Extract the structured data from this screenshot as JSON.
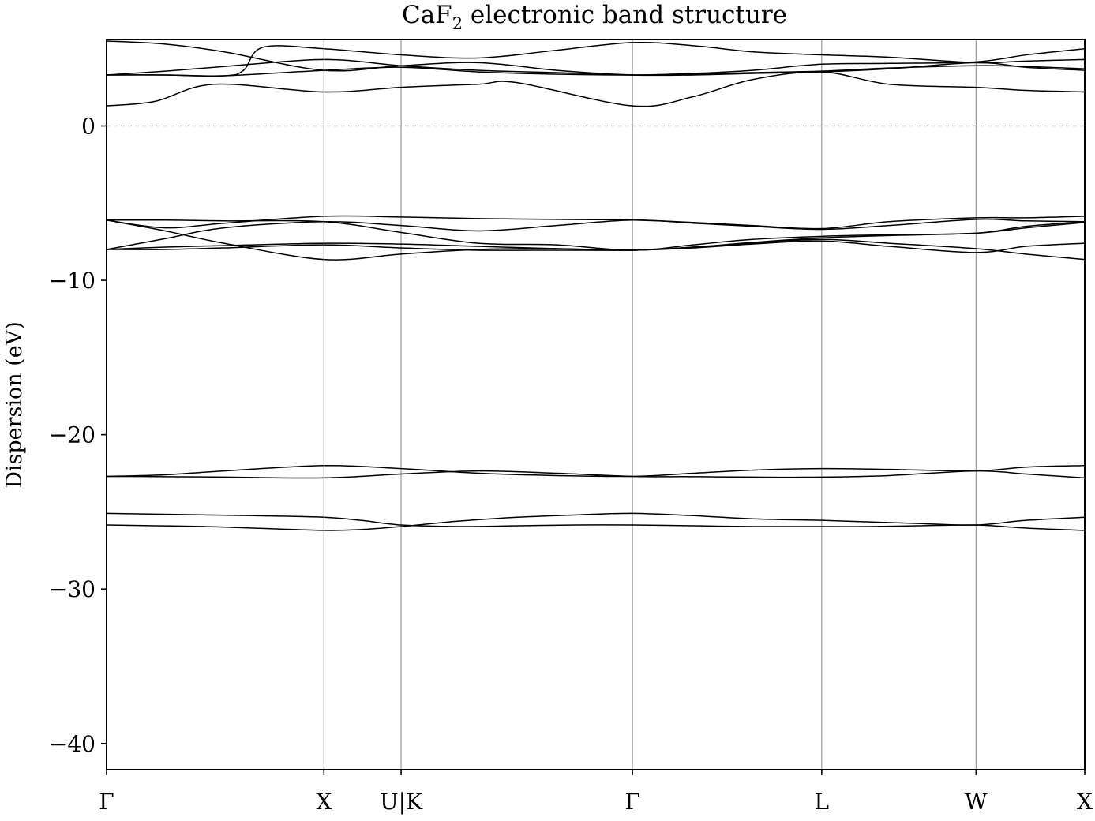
{
  "chart_data": {
    "type": "line",
    "title": "CaF",
    "title_subscript": "2",
    "title_suffix": " electronic band structure",
    "xlabel": "",
    "ylabel": "Dispersion (eV)",
    "ylim": [
      -41.7,
      5.6
    ],
    "xlim": [
      0,
      1
    ],
    "grid": false,
    "fermi_level": 0,
    "high_symmetry_points": [
      {
        "label": "Γ",
        "x": 0.0
      },
      {
        "label": "X",
        "x": 0.2222
      },
      {
        "label": "U|K",
        "x": 0.3011
      },
      {
        "label": "Γ",
        "x": 0.5376
      },
      {
        "label": "L",
        "x": 0.7311
      },
      {
        "label": "W",
        "x": 0.8889
      },
      {
        "label": "X",
        "x": 1.0
      }
    ],
    "y_ticks": [
      0,
      -10,
      -20,
      -30,
      -40
    ],
    "y_tick_labels": [
      "0",
      "−10",
      "−20",
      "−30",
      "−40"
    ],
    "series": [
      {
        "band": 1,
        "x": [
          0,
          0.05,
          0.1,
          0.15,
          0.2222,
          0.26,
          0.3011,
          0.36,
          0.42,
          0.48,
          0.5376,
          0.6,
          0.66,
          0.7311,
          0.78,
          0.83,
          0.8889,
          0.94,
          1.0
        ],
        "values": [
          -25.85,
          -25.9,
          -25.95,
          -26.05,
          -26.2,
          -26.15,
          -25.95,
          -25.6,
          -25.35,
          -25.2,
          -25.1,
          -25.25,
          -25.45,
          -25.55,
          -25.65,
          -25.75,
          -25.85,
          -25.55,
          -25.35
        ]
      },
      {
        "band": 2,
        "x": [
          0,
          0.05,
          0.1,
          0.15,
          0.2222,
          0.26,
          0.3011,
          0.36,
          0.42,
          0.48,
          0.5376,
          0.6,
          0.66,
          0.7311,
          0.78,
          0.83,
          0.8889,
          0.94,
          1.0
        ],
        "values": [
          -25.1,
          -25.15,
          -25.2,
          -25.25,
          -25.35,
          -25.55,
          -25.85,
          -25.95,
          -25.9,
          -25.85,
          -25.85,
          -25.9,
          -25.95,
          -25.95,
          -25.95,
          -25.9,
          -25.85,
          -26.05,
          -26.2
        ]
      },
      {
        "band": 3,
        "x": [
          0,
          0.06,
          0.12,
          0.2222,
          0.3011,
          0.38,
          0.46,
          0.5376,
          0.6,
          0.66,
          0.7311,
          0.8,
          0.8889,
          0.94,
          1.0
        ],
        "values": [
          -22.7,
          -22.6,
          -22.35,
          -22.0,
          -22.2,
          -22.5,
          -22.65,
          -22.7,
          -22.5,
          -22.3,
          -22.2,
          -22.25,
          -22.35,
          -22.1,
          -22.0
        ]
      },
      {
        "band": 4,
        "x": [
          0,
          0.06,
          0.12,
          0.2222,
          0.3011,
          0.38,
          0.46,
          0.5376,
          0.6,
          0.66,
          0.7311,
          0.8,
          0.8889,
          0.94,
          1.0
        ],
        "values": [
          -22.7,
          -22.72,
          -22.75,
          -22.8,
          -22.55,
          -22.35,
          -22.5,
          -22.7,
          -22.72,
          -22.75,
          -22.75,
          -22.65,
          -22.35,
          -22.55,
          -22.8
        ]
      },
      {
        "band": 5,
        "x": [
          0,
          0.06,
          0.12,
          0.2222,
          0.3011,
          0.38,
          0.46,
          0.5376,
          0.6,
          0.66,
          0.7311,
          0.8,
          0.8889,
          0.94,
          1.0
        ],
        "values": [
          -8.0,
          -8.0,
          -7.9,
          -7.7,
          -7.9,
          -8.05,
          -8.05,
          -8.05,
          -7.9,
          -7.65,
          -7.45,
          -7.8,
          -8.2,
          -7.8,
          -7.6
        ]
      },
      {
        "band": 6,
        "x": [
          0,
          0.06,
          0.12,
          0.2222,
          0.3011,
          0.38,
          0.46,
          0.5376,
          0.6,
          0.66,
          0.7311,
          0.8,
          0.8889,
          0.94,
          1.0
        ],
        "values": [
          -8.0,
          -7.85,
          -7.75,
          -7.6,
          -7.65,
          -7.8,
          -7.95,
          -8.05,
          -7.85,
          -7.6,
          -7.35,
          -7.6,
          -7.95,
          -8.3,
          -8.65
        ]
      },
      {
        "band": 7,
        "x": [
          0,
          0.06,
          0.12,
          0.2222,
          0.3011,
          0.38,
          0.46,
          0.5376,
          0.6,
          0.66,
          0.7311,
          0.8,
          0.8889,
          0.94,
          1.0
        ],
        "values": [
          -6.1,
          -6.8,
          -7.6,
          -8.65,
          -8.3,
          -8.0,
          -7.95,
          -8.05,
          -7.85,
          -7.55,
          -7.25,
          -7.1,
          -6.95,
          -6.6,
          -6.25
        ]
      },
      {
        "band": 8,
        "x": [
          0,
          0.06,
          0.12,
          0.2222,
          0.3011,
          0.38,
          0.46,
          0.5376,
          0.6,
          0.66,
          0.7311,
          0.8,
          0.8889,
          0.94,
          1.0
        ],
        "values": [
          -6.1,
          -6.1,
          -6.15,
          -6.2,
          -6.9,
          -7.6,
          -7.7,
          -8.05,
          -7.7,
          -7.35,
          -7.15,
          -7.05,
          -6.95,
          -6.5,
          -6.2
        ]
      },
      {
        "band": 9,
        "x": [
          0,
          0.06,
          0.12,
          0.2222,
          0.3011,
          0.38,
          0.46,
          0.5376,
          0.6,
          0.66,
          0.7311,
          0.8,
          0.8889,
          0.94,
          1.0
        ],
        "values": [
          -8.0,
          -7.3,
          -6.6,
          -6.2,
          -6.45,
          -6.8,
          -6.45,
          -6.1,
          -6.3,
          -6.5,
          -6.7,
          -6.45,
          -6.05,
          -6.15,
          -6.2
        ]
      },
      {
        "band": 10,
        "x": [
          0,
          0.06,
          0.12,
          0.2222,
          0.3011,
          0.38,
          0.46,
          0.5376,
          0.6,
          0.66,
          0.7311,
          0.8,
          0.8889,
          0.94,
          1.0
        ],
        "values": [
          -6.1,
          -6.6,
          -6.3,
          -5.85,
          -5.9,
          -6.0,
          -6.05,
          -6.1,
          -6.25,
          -6.45,
          -6.65,
          -6.2,
          -5.95,
          -5.95,
          -5.85
        ]
      },
      {
        "band": 11,
        "x": [
          0,
          0.05,
          0.11,
          0.2222,
          0.3011,
          0.38,
          0.42,
          0.5376,
          0.6,
          0.66,
          0.7311,
          0.8,
          0.8889,
          0.94,
          1.0
        ],
        "values": [
          1.3,
          1.6,
          2.7,
          2.2,
          2.5,
          2.7,
          2.8,
          1.3,
          1.9,
          3.0,
          3.5,
          2.7,
          2.5,
          2.3,
          2.2
        ]
      },
      {
        "band": 12,
        "x": [
          0,
          0.06,
          0.12,
          0.2222,
          0.3011,
          0.38,
          0.46,
          0.5376,
          0.6,
          0.66,
          0.7311,
          0.8,
          0.8889,
          0.94,
          1.0
        ],
        "values": [
          3.3,
          3.3,
          3.25,
          3.6,
          3.8,
          3.5,
          3.35,
          3.3,
          3.35,
          3.45,
          3.55,
          3.75,
          3.9,
          3.85,
          3.7
        ]
      },
      {
        "band": 13,
        "x": [
          0,
          0.06,
          0.12,
          0.14,
          0.16,
          0.2222,
          0.3011,
          0.38,
          0.46,
          0.5376,
          0.6,
          0.66,
          0.7311,
          0.8,
          0.8889,
          0.94,
          1.0
        ],
        "values": [
          3.3,
          3.3,
          3.25,
          3.6,
          5.1,
          5.0,
          4.6,
          4.4,
          4.9,
          5.4,
          5.2,
          4.8,
          4.6,
          4.45,
          4.1,
          4.2,
          4.3
        ]
      },
      {
        "band": 14,
        "x": [
          0,
          0.06,
          0.12,
          0.2222,
          0.3011,
          0.38,
          0.46,
          0.5376,
          0.6,
          0.66,
          0.7311,
          0.8,
          0.8889,
          0.94,
          1.0
        ],
        "values": [
          3.3,
          3.55,
          3.85,
          4.3,
          3.9,
          3.6,
          3.45,
          3.3,
          3.4,
          3.6,
          4.0,
          4.05,
          4.15,
          4.6,
          5.0
        ]
      },
      {
        "band": 15,
        "x": [
          0,
          0.06,
          0.12,
          0.2222,
          0.3011,
          0.38,
          0.46,
          0.5376,
          0.6,
          0.66,
          0.7311,
          0.8,
          0.8889,
          0.94,
          1.0
        ],
        "values": [
          5.5,
          5.3,
          4.8,
          3.6,
          3.9,
          4.1,
          3.6,
          3.3,
          3.3,
          3.4,
          3.5,
          3.7,
          4.1,
          3.8,
          3.6
        ]
      }
    ]
  }
}
